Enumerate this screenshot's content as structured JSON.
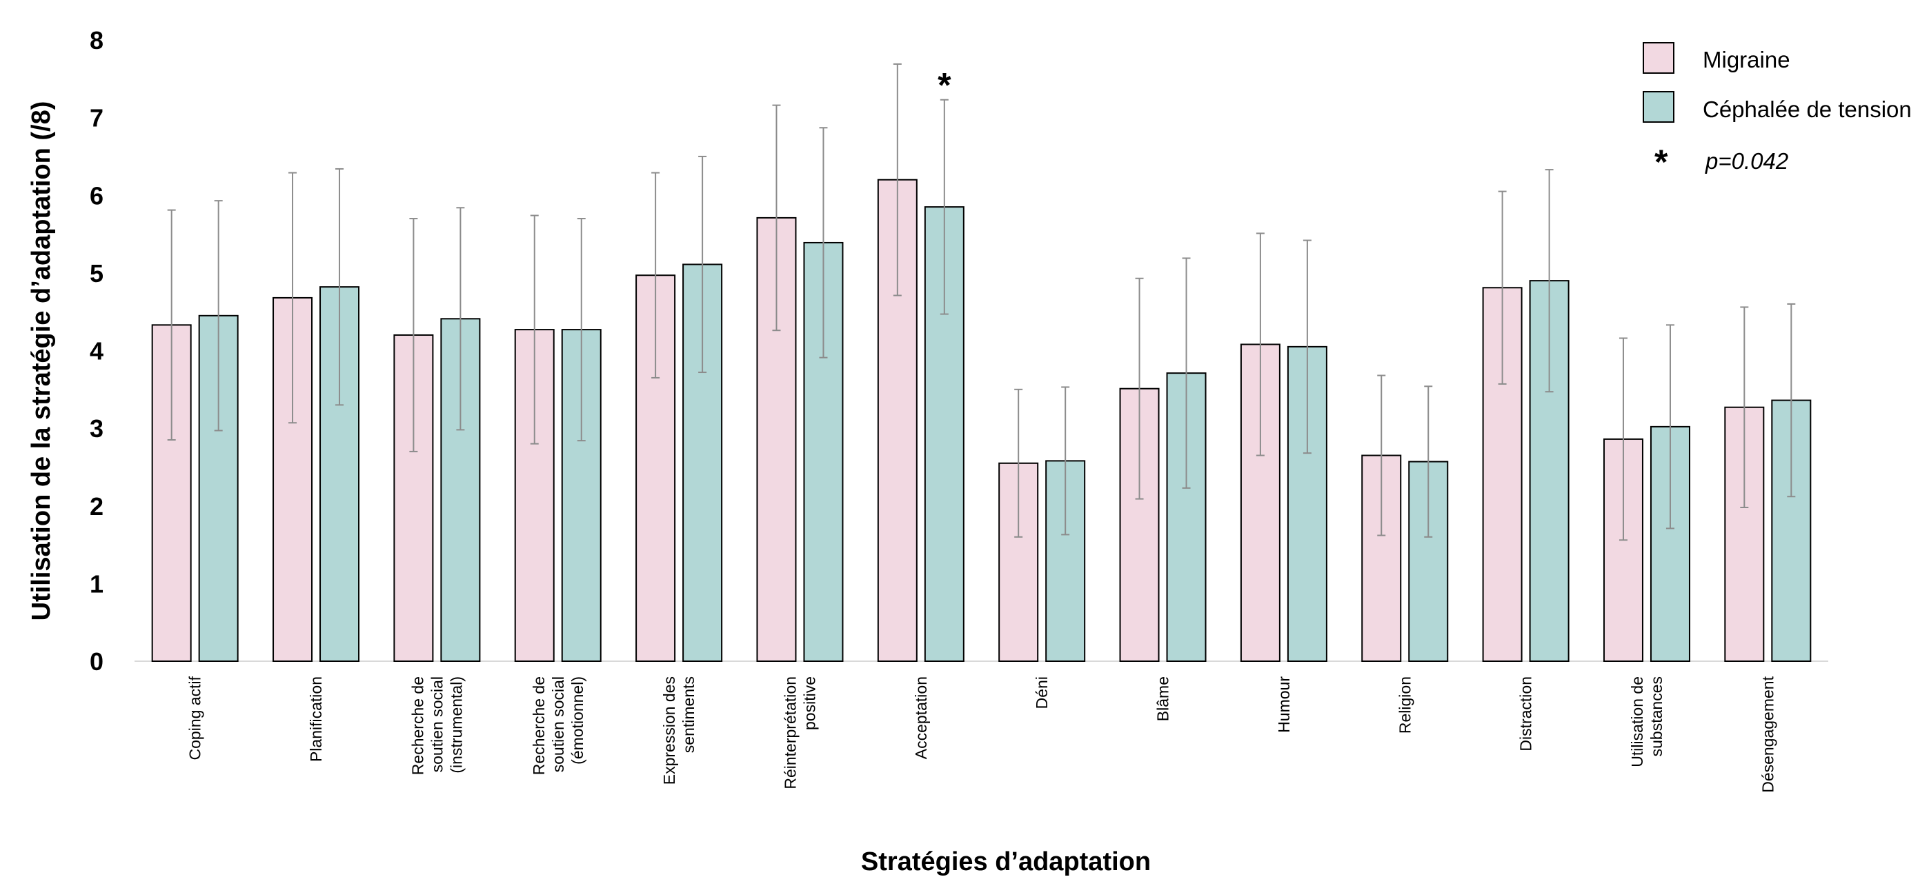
{
  "chart_data": {
    "type": "bar",
    "xlabel": "Stratégies d’adaptation",
    "ylabel": "Utilisation de la stratégie d’adaptation (/8)",
    "ylim": [
      0,
      8
    ],
    "yticks": [
      "0",
      "1",
      "2",
      "3",
      "4",
      "5",
      "6",
      "7",
      "8"
    ],
    "grid": false,
    "legend_position": "top-right",
    "categories": [
      [
        "Coping actif"
      ],
      [
        "Planification"
      ],
      [
        "Recherche de",
        "soutien social",
        "(instrumental)"
      ],
      [
        "Recherche de",
        "soutien social",
        "(émotionnel)"
      ],
      [
        "Expression des",
        "sentiments"
      ],
      [
        "Réinterprétation",
        "positive"
      ],
      [
        "Acceptation"
      ],
      [
        "Déni"
      ],
      [
        "Blâme"
      ],
      [
        "Humour"
      ],
      [
        "Religion"
      ],
      [
        "Distraction"
      ],
      [
        "Utilisation de",
        "substances"
      ],
      [
        "Désengagement"
      ]
    ],
    "series": [
      {
        "name": "Migraine",
        "color": "#F2D9E2",
        "values": [
          4.33,
          4.68,
          4.2,
          4.27,
          4.97,
          5.71,
          6.2,
          2.55,
          3.51,
          4.08,
          2.65,
          4.81,
          2.86,
          3.27
        ],
        "error": [
          1.48,
          1.61,
          1.5,
          1.47,
          1.32,
          1.45,
          1.49,
          0.95,
          1.42,
          1.43,
          1.03,
          1.24,
          1.3,
          1.29
        ]
      },
      {
        "name": "Céphalée de tension",
        "color": "#B2D7D6",
        "values": [
          4.45,
          4.82,
          4.41,
          4.27,
          5.11,
          5.39,
          5.85,
          2.58,
          3.71,
          4.05,
          2.57,
          4.9,
          3.02,
          3.36
        ],
        "error": [
          1.48,
          1.52,
          1.43,
          1.43,
          1.39,
          1.48,
          1.38,
          0.95,
          1.48,
          1.37,
          0.97,
          1.43,
          1.31,
          1.24
        ]
      }
    ],
    "annotations": [
      {
        "text": "*",
        "category_index": 6,
        "series_index": 1
      }
    ],
    "legend_note": {
      "symbol": "*",
      "text": "p=0.042"
    }
  }
}
